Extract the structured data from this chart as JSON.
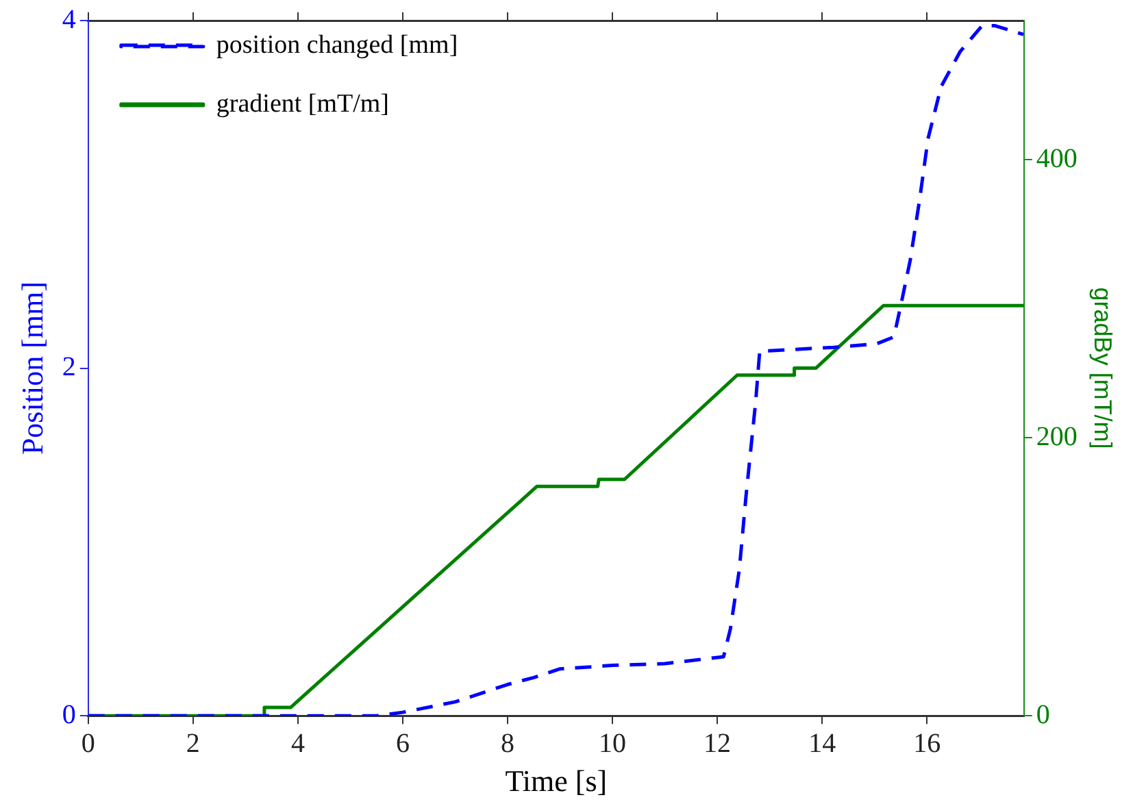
{
  "chart_data": {
    "type": "line",
    "xlabel": "Time [s]",
    "ylabel": "Position [mm]",
    "y2label": "gradBy [mT/m]",
    "xlim": [
      0,
      17.85
    ],
    "xticks": [
      0,
      2,
      4,
      6,
      8,
      10,
      12,
      14,
      16
    ],
    "ylim": [
      0,
      4
    ],
    "yticks": [
      0,
      2,
      4
    ],
    "y2lim": [
      0,
      500
    ],
    "y2ticks": [
      0,
      200,
      400
    ],
    "legend": "top left",
    "grid": false,
    "marker": "none",
    "series": [
      {
        "name": "position changed [mm]",
        "color": "#0000ff",
        "line_style": "dashed",
        "x": [
          0,
          5.5,
          6,
          7,
          8,
          8.5,
          9,
          9.5,
          10,
          11,
          12.12,
          12.25,
          12.42,
          12.55,
          12.73,
          12.81,
          12.98,
          14.22,
          15.04,
          15.37,
          15.5,
          15.68,
          15.86,
          16.02,
          16.27,
          16.63,
          17.05,
          17.3,
          17.84
        ],
        "values": [
          0,
          0,
          0.02,
          0.08,
          0.18,
          0.22,
          0.27,
          0.28,
          0.29,
          0.3,
          0.34,
          0.5,
          0.84,
          1.27,
          1.8,
          2.1,
          2.1,
          2.12,
          2.14,
          2.18,
          2.36,
          2.62,
          2.97,
          3.32,
          3.62,
          3.82,
          3.97,
          3.97,
          3.92
        ]
      },
      {
        "name": "gradient [mT/m]",
        "color": "#008000",
        "line_style": "solid",
        "axis": "y2",
        "x": [
          0,
          3.34,
          3.36,
          3.86,
          8.56,
          9.72,
          9.74,
          10.23,
          12.38,
          13.45,
          13.47,
          13.88,
          15.17,
          17.84
        ],
        "values": [
          0,
          0,
          6,
          6,
          165,
          165,
          170,
          170,
          245,
          245,
          250,
          250,
          295,
          295
        ]
      }
    ]
  }
}
